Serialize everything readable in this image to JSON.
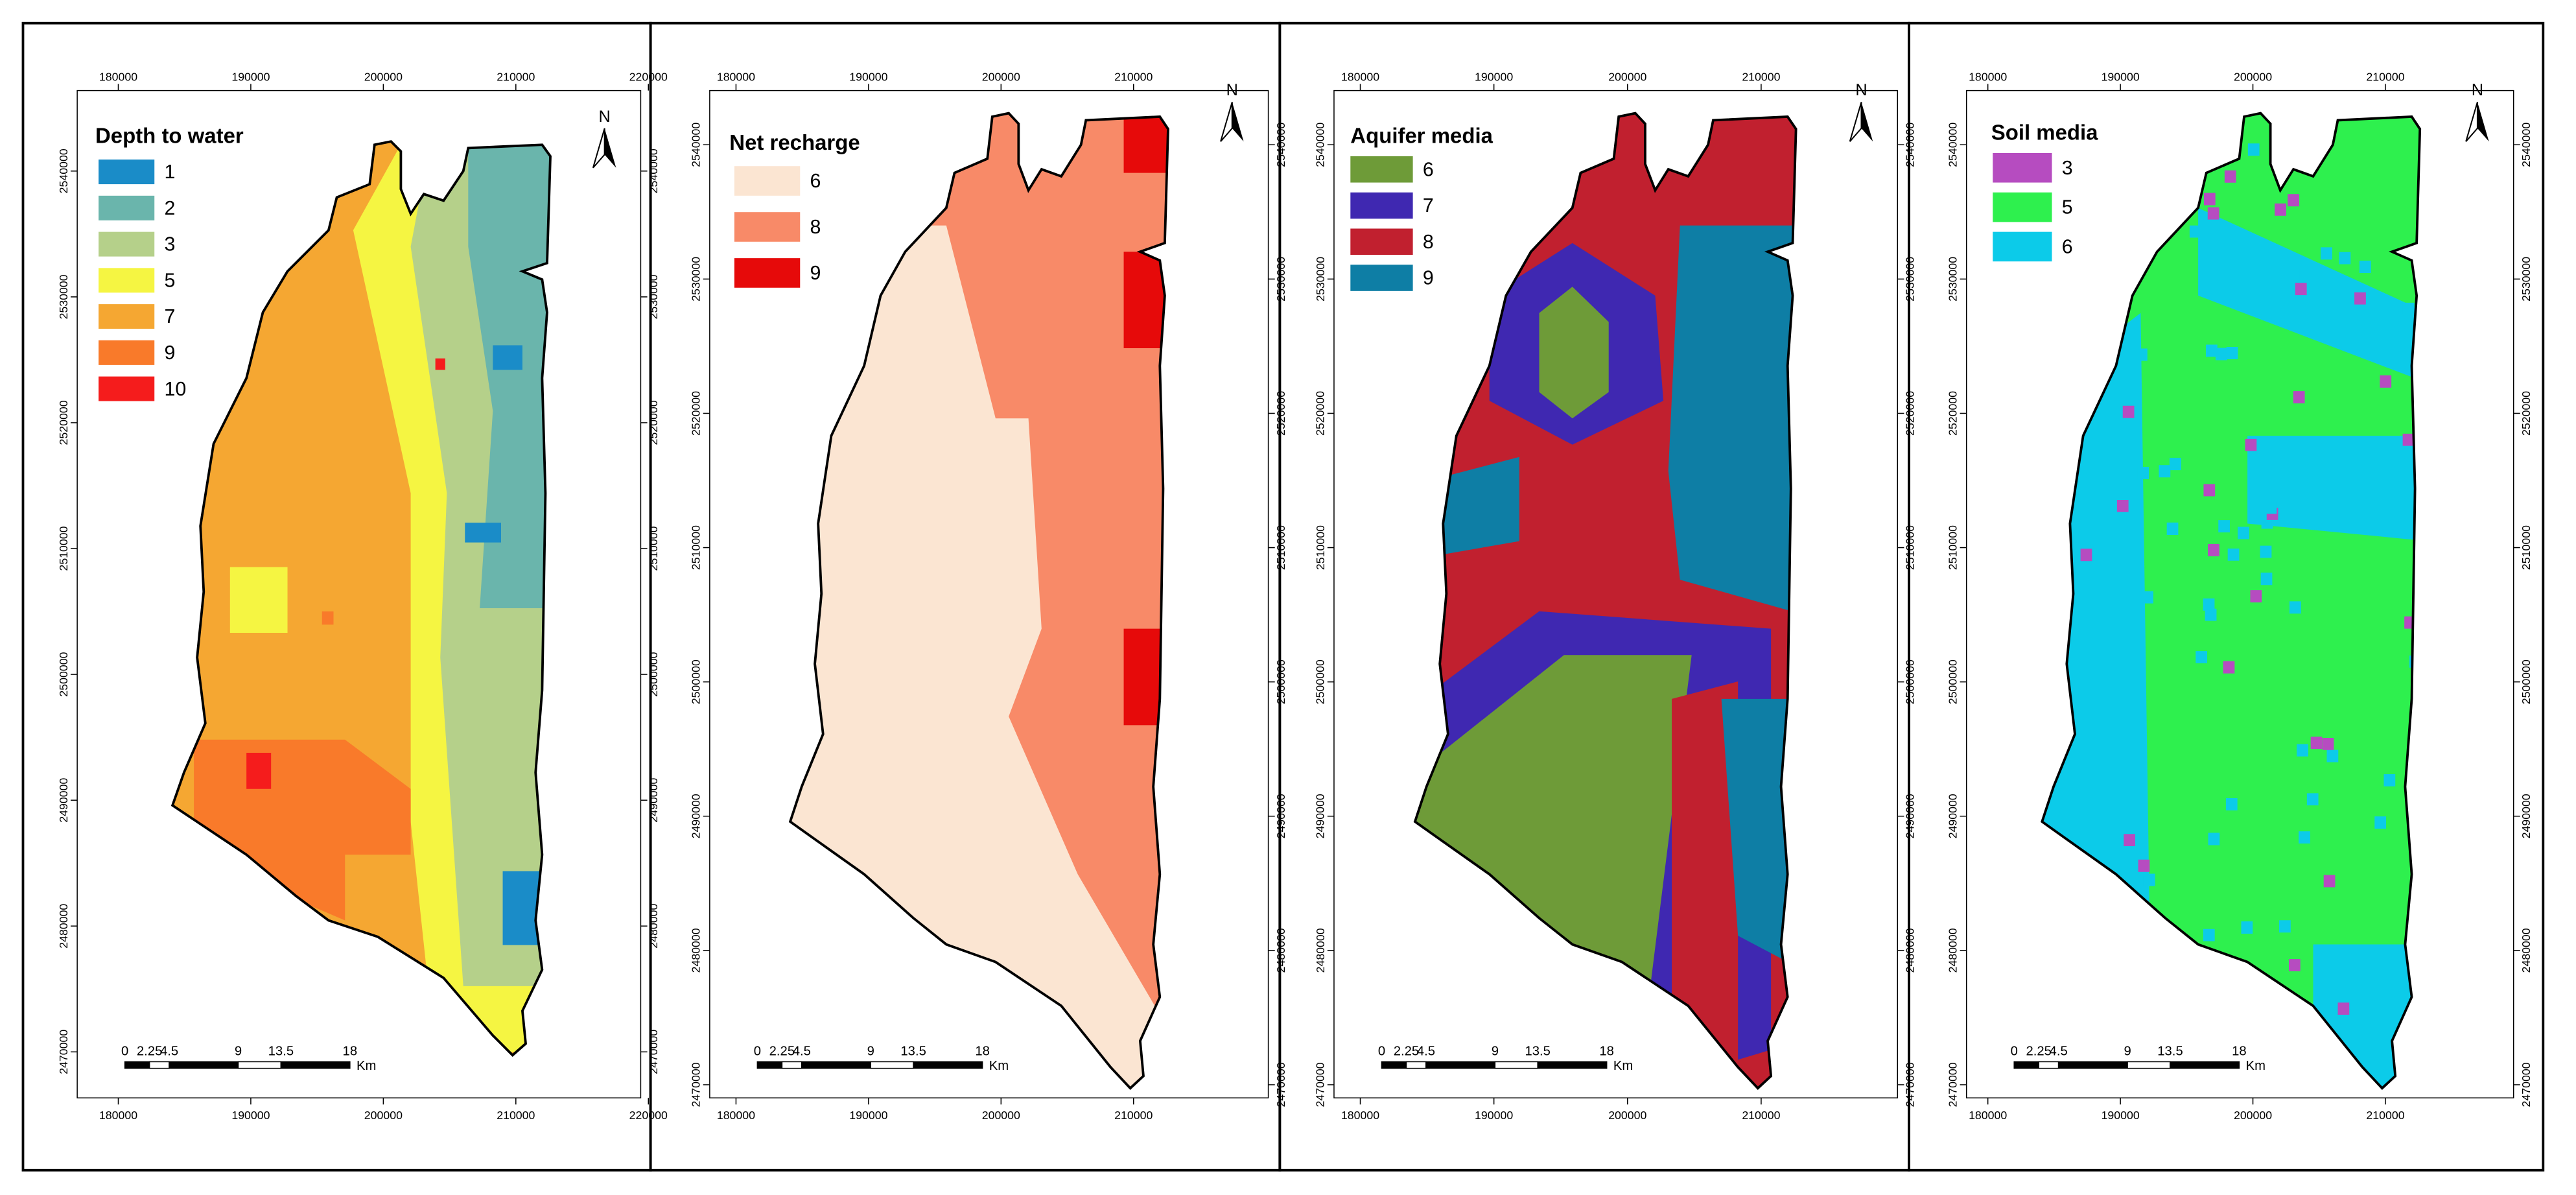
{
  "panels": [
    {
      "title": "Depth to water",
      "legend": [
        {
          "label": 1,
          "color": "#1a8cc8"
        },
        {
          "label": 2,
          "color": "#6ab5ac"
        },
        {
          "label": 3,
          "color": "#b5d08a"
        },
        {
          "label": 5,
          "color": "#f5f542"
        },
        {
          "label": 7,
          "color": "#f5a732"
        },
        {
          "label": 9,
          "color": "#f97a2a"
        },
        {
          "label": 10,
          "color": "#f51c1c"
        }
      ],
      "xticks": [
        180000,
        190000,
        200000,
        210000,
        220000
      ],
      "yticks": [
        2540000,
        2530000,
        2520000,
        2510000,
        2500000,
        2490000,
        2480000,
        2470000
      ]
    },
    {
      "title": "Net recharge",
      "legend": [
        {
          "label": 6,
          "color": "#fbe5d2"
        },
        {
          "label": 8,
          "color": "#f88a68"
        },
        {
          "label": 9,
          "color": "#e60a0a"
        }
      ],
      "xticks": [
        180000,
        190000,
        200000,
        210000
      ],
      "yticks": [
        2540000,
        2530000,
        2520000,
        2510000,
        2500000,
        2490000,
        2480000,
        2470000
      ]
    },
    {
      "title": "Aquifer media",
      "legend": [
        {
          "label": 6,
          "color": "#6e9b38"
        },
        {
          "label": 7,
          "color": "#3f28b1"
        },
        {
          "label": 8,
          "color": "#c1202f"
        },
        {
          "label": 9,
          "color": "#0e7ea5"
        }
      ],
      "xticks": [
        180000,
        190000,
        200000,
        210000
      ],
      "yticks": [
        2540000,
        2530000,
        2520000,
        2510000,
        2500000,
        2490000,
        2480000,
        2470000
      ]
    },
    {
      "title": "Soil media",
      "legend": [
        {
          "label": 3,
          "color": "#b64cc0"
        },
        {
          "label": 5,
          "color": "#2ef04e"
        },
        {
          "label": 6,
          "color": "#0ccbe9"
        }
      ],
      "xticks": [
        180000,
        190000,
        200000,
        210000
      ],
      "yticks": [
        2540000,
        2530000,
        2520000,
        2510000,
        2500000,
        2490000,
        2480000,
        2470000
      ]
    }
  ],
  "scale_bar": {
    "labels": [
      "0",
      "2.25",
      "4.5",
      "9",
      "13.5",
      "18"
    ],
    "unit": "Km"
  },
  "north_label": "N"
}
